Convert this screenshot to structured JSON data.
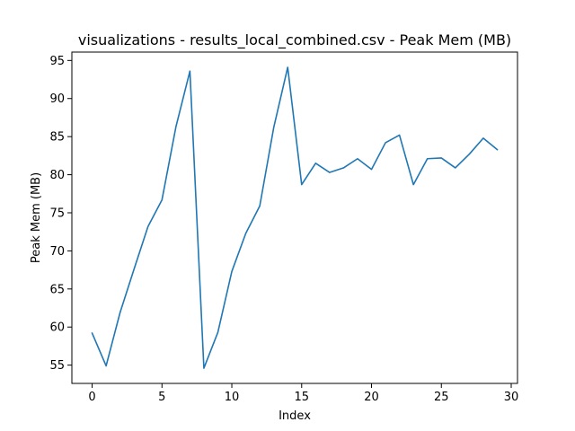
{
  "chart_data": {
    "type": "line",
    "title": "visualizations - results_local_combined.csv - Peak Mem (MB)",
    "xlabel": "Index",
    "ylabel": "Peak Mem (MB)",
    "xlim": [
      -1.45,
      30.45
    ],
    "ylim": [
      52.6,
      96.1
    ],
    "xticks": [
      0,
      5,
      10,
      15,
      20,
      25,
      30
    ],
    "yticks": [
      55,
      60,
      65,
      70,
      75,
      80,
      85,
      90,
      95
    ],
    "grid": false,
    "legend": "none",
    "series": [
      {
        "color": "#1f77b4",
        "x": [
          0,
          1,
          2,
          3,
          4,
          5,
          6,
          7,
          8,
          9,
          10,
          11,
          12,
          13,
          14,
          15,
          16,
          17,
          18,
          19,
          20,
          21,
          22,
          23,
          24,
          25,
          26,
          27,
          28,
          29
        ],
        "y": [
          59.2,
          54.9,
          61.9,
          67.6,
          73.2,
          76.7,
          86.3,
          93.6,
          54.6,
          59.3,
          67.3,
          72.3,
          75.9,
          86.2,
          94.1,
          78.7,
          81.5,
          80.3,
          80.9,
          82.1,
          80.7,
          84.2,
          85.2,
          78.7,
          82.1,
          82.2,
          80.9,
          82.7,
          84.8,
          83.3
        ]
      }
    ]
  }
}
